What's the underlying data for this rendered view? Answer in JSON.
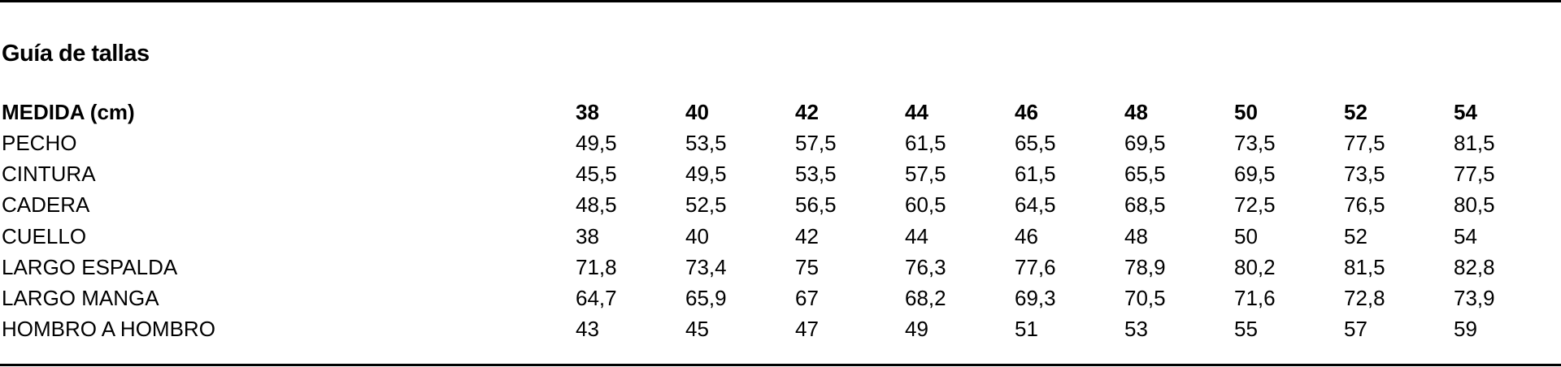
{
  "title": "Guía de tallas",
  "table": {
    "header_label": "MEDIDA (cm)",
    "sizes": [
      "38",
      "40",
      "42",
      "44",
      "46",
      "48",
      "50",
      "52",
      "54"
    ],
    "rows": [
      {
        "label": "PECHO",
        "values": [
          "49,5",
          "53,5",
          "57,5",
          "61,5",
          "65,5",
          "69,5",
          "73,5",
          "77,5",
          "81,5"
        ]
      },
      {
        "label": "CINTURA",
        "values": [
          "45,5",
          "49,5",
          "53,5",
          "57,5",
          "61,5",
          "65,5",
          "69,5",
          "73,5",
          "77,5"
        ]
      },
      {
        "label": "CADERA",
        "values": [
          "48,5",
          "52,5",
          "56,5",
          "60,5",
          "64,5",
          "68,5",
          "72,5",
          "76,5",
          "80,5"
        ]
      },
      {
        "label": "CUELLO",
        "values": [
          "38",
          "40",
          "42",
          "44",
          "46",
          "48",
          "50",
          "52",
          "54"
        ]
      },
      {
        "label": "LARGO ESPALDA",
        "values": [
          "71,8",
          "73,4",
          "75",
          "76,3",
          "77,6",
          "78,9",
          "80,2",
          "81,5",
          "82,8"
        ]
      },
      {
        "label": "LARGO MANGA",
        "values": [
          "64,7",
          "65,9",
          "67",
          "68,2",
          "69,3",
          "70,5",
          "71,6",
          "72,8",
          "73,9"
        ]
      },
      {
        "label": "HOMBRO A HOMBRO",
        "values": [
          "43",
          "45",
          "47",
          "49",
          "51",
          "53",
          "55",
          "57",
          "59"
        ]
      }
    ]
  }
}
